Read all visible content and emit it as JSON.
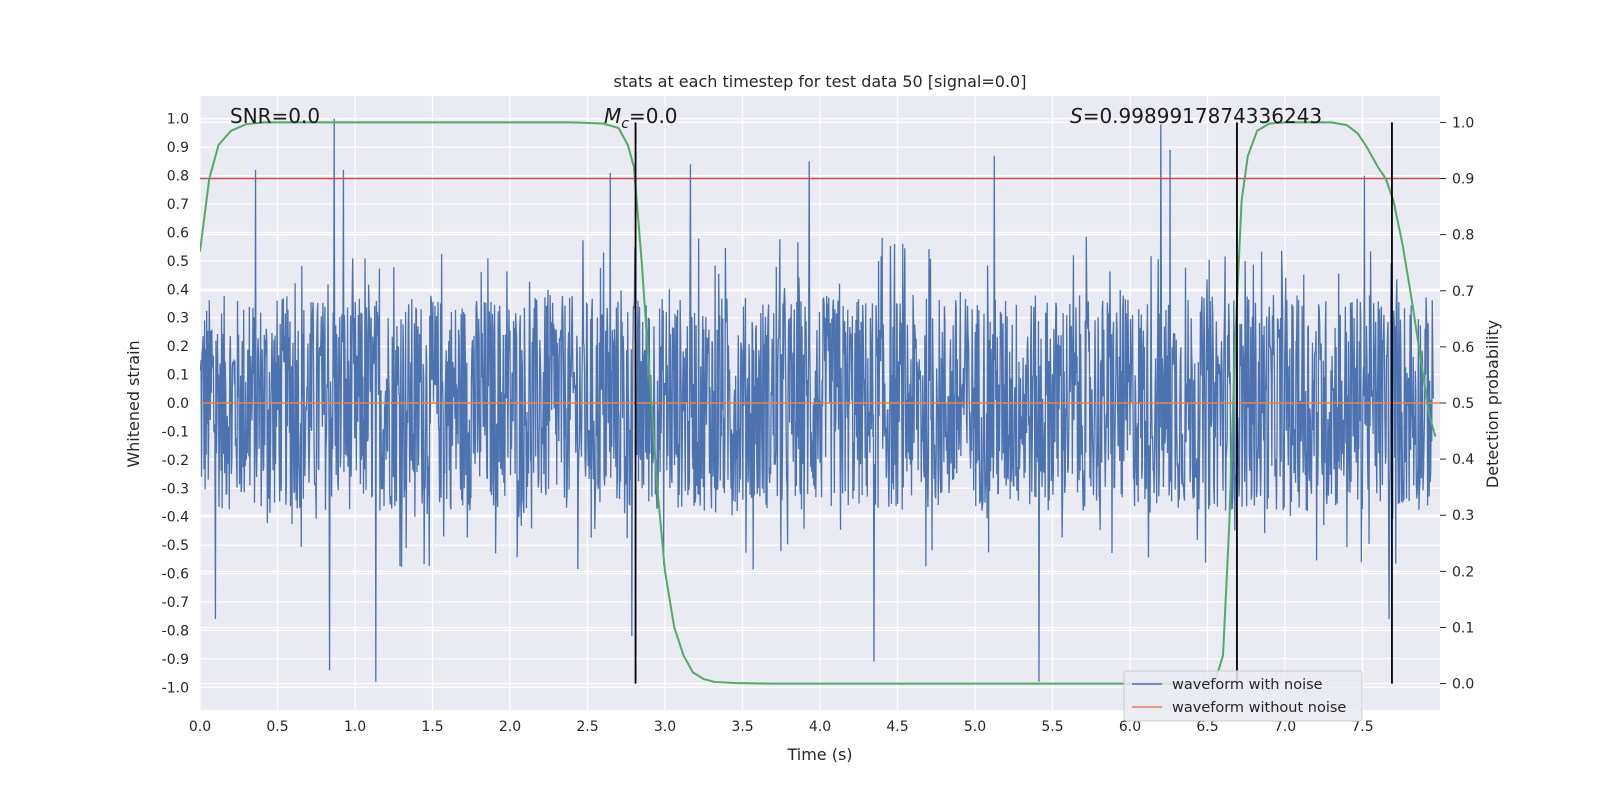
{
  "chart_data": {
    "type": "line",
    "title": "stats at each timestep for test data 50 [signal=0.0]",
    "xlabel": "Time (s)",
    "ylabel": "Whitened strain",
    "y2label": "Detection probability",
    "xlim": [
      0.0,
      8.0
    ],
    "ylim": [
      -1.08,
      1.08
    ],
    "y2lim": [
      -0.047,
      1.047
    ],
    "xticks": [
      "0.0",
      "0.5",
      "1.0",
      "1.5",
      "2.0",
      "2.5",
      "3.0",
      "3.5",
      "4.0",
      "4.5",
      "5.0",
      "5.5",
      "6.0",
      "6.5",
      "7.0",
      "7.5"
    ],
    "yticks": [
      "1.0",
      "0.9",
      "0.8",
      "0.7",
      "0.6",
      "0.5",
      "0.4",
      "0.3",
      "0.2",
      "0.1",
      "0.0",
      "-0.1",
      "-0.2",
      "-0.3",
      "-0.4",
      "-0.5",
      "-0.6",
      "-0.7",
      "-0.8",
      "-0.9",
      "-1.0"
    ],
    "y2ticks": [
      "1.0",
      "0.9",
      "0.8",
      "0.7",
      "0.6",
      "0.5",
      "0.4",
      "0.3",
      "0.2",
      "0.1",
      "0.0"
    ],
    "grid": true,
    "legend": {
      "position": "lower-right",
      "entries": [
        "waveform with noise",
        "waveform without noise"
      ]
    },
    "annotations": {
      "snr": "SNR=0.0",
      "mc_symbol": "M",
      "mc_sub": "c",
      "mc_value": "=0.0",
      "s_symbol": "S",
      "s_value": "=0.9989917874336243"
    },
    "threshold": {
      "axis": "y2",
      "value": 0.9,
      "color": "#c44e52"
    },
    "vertical_markers": [
      2.81,
      6.69,
      7.69
    ],
    "series": [
      {
        "name": "waveform with noise",
        "axis": "y",
        "color": "#4c72b0",
        "description": "whitened noisy strain, amplitude mostly within ±0.5 with peaks near ±1.0",
        "peaks": [
          {
            "x": 0.87,
            "y": 1.0
          },
          {
            "x": 0.93,
            "y": 0.82
          },
          {
            "x": 0.36,
            "y": 0.82
          },
          {
            "x": 2.66,
            "y": 0.81
          },
          {
            "x": 3.18,
            "y": 0.84
          },
          {
            "x": 3.95,
            "y": 0.85
          },
          {
            "x": 5.15,
            "y": 0.87
          },
          {
            "x": 6.23,
            "y": 0.98
          },
          {
            "x": 6.29,
            "y": 0.89
          },
          {
            "x": 7.55,
            "y": 0.8
          },
          {
            "x": 1.14,
            "y": -0.98
          },
          {
            "x": 0.84,
            "y": -0.94
          },
          {
            "x": 5.44,
            "y": -0.98
          },
          {
            "x": 4.37,
            "y": -0.91
          },
          {
            "x": 7.71,
            "y": -0.76
          },
          {
            "x": 0.1,
            "y": -0.76
          },
          {
            "x": 2.8,
            "y": -0.82
          }
        ]
      },
      {
        "name": "waveform without noise",
        "axis": "y",
        "color": "#dd8452",
        "x": [
          0.0,
          8.0
        ],
        "y": [
          0.0,
          0.0
        ]
      },
      {
        "name": "detection probability",
        "axis": "y2",
        "color": "#55a868",
        "x": [
          0.0,
          0.06,
          0.12,
          0.2,
          0.3,
          0.42,
          0.6,
          2.4,
          2.6,
          2.7,
          2.76,
          2.8,
          2.85,
          2.9,
          2.95,
          3.0,
          3.06,
          3.12,
          3.18,
          3.25,
          3.32,
          3.45,
          3.7,
          6.4,
          6.55,
          6.6,
          6.64,
          6.68,
          6.72,
          6.76,
          6.82,
          6.9,
          7.0,
          7.3,
          7.4,
          7.47,
          7.53,
          7.6,
          7.65,
          7.7,
          7.76,
          7.82,
          7.88,
          7.93,
          7.97
        ],
        "y": [
          0.77,
          0.9,
          0.96,
          0.985,
          0.997,
          1.0,
          1.0,
          1.0,
          0.998,
          0.99,
          0.96,
          0.92,
          0.75,
          0.55,
          0.35,
          0.2,
          0.1,
          0.05,
          0.02,
          0.008,
          0.003,
          0.001,
          0.0,
          0.0,
          0.005,
          0.05,
          0.28,
          0.62,
          0.86,
          0.94,
          0.985,
          0.998,
          1.0,
          1.0,
          0.995,
          0.98,
          0.955,
          0.92,
          0.9,
          0.86,
          0.78,
          0.68,
          0.57,
          0.48,
          0.44
        ]
      }
    ]
  }
}
